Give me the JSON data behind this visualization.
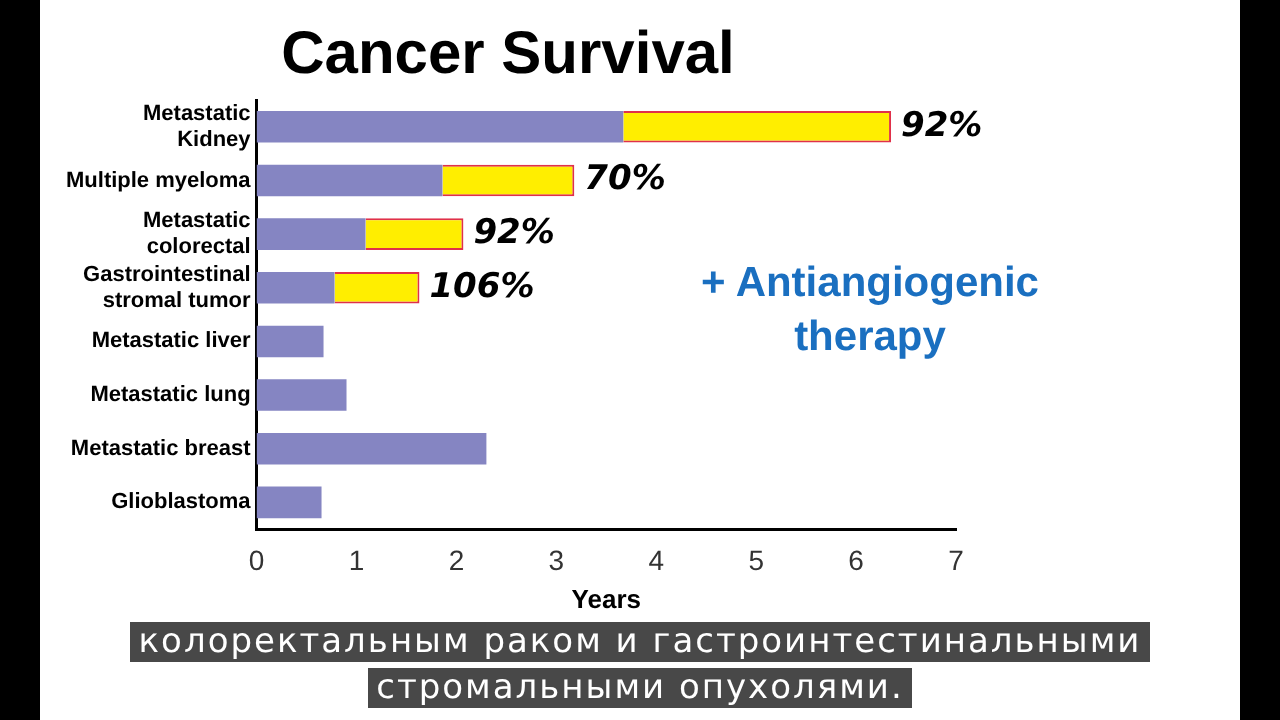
{
  "chart_data": {
    "type": "bar",
    "orientation": "horizontal",
    "stacked": true,
    "title": "Cancer Survival",
    "xlabel": "Years",
    "categories": [
      "Metastatic\nKidney",
      "Multiple myeloma",
      "Metastatic\ncolorectal",
      "Gastrointestinal\nstromal tumor",
      "Metastatic liver",
      "Metastatic lung",
      "Metastatic breast",
      "Glioblastoma"
    ],
    "series": [
      {
        "color": "#8585c2",
        "values": [
          3.67,
          1.86,
          1.09,
          0.78,
          0.67,
          0.9,
          2.3,
          0.65
        ]
      },
      {
        "color": "#ffee00",
        "values": [
          2.68,
          1.32,
          0.98,
          0.85,
          null,
          null,
          null,
          null
        ]
      }
    ],
    "xlim": [
      0,
      7
    ],
    "xticks": [
      0,
      1,
      2,
      3,
      4,
      5,
      6,
      7
    ],
    "grid": false,
    "legend": false,
    "annotations": [
      "+ Antiangiogenic therapy",
      "колоректальным раком и гастроинтестинальными стромальными опухолями.",
      {
        "text": "92%",
        "x": 6.35,
        "y": "Metastatic\nKidney"
      },
      {
        "text": "70%",
        "x": 3.18,
        "y": "Multiple myeloma"
      },
      {
        "text": "92%",
        "x": 2.07,
        "y": "Metastatic\ncolorectal"
      },
      {
        "text": "106%",
        "x": 1.63,
        "y": "Gastrointestinal\nstromal tumor"
      }
    ]
  }
}
